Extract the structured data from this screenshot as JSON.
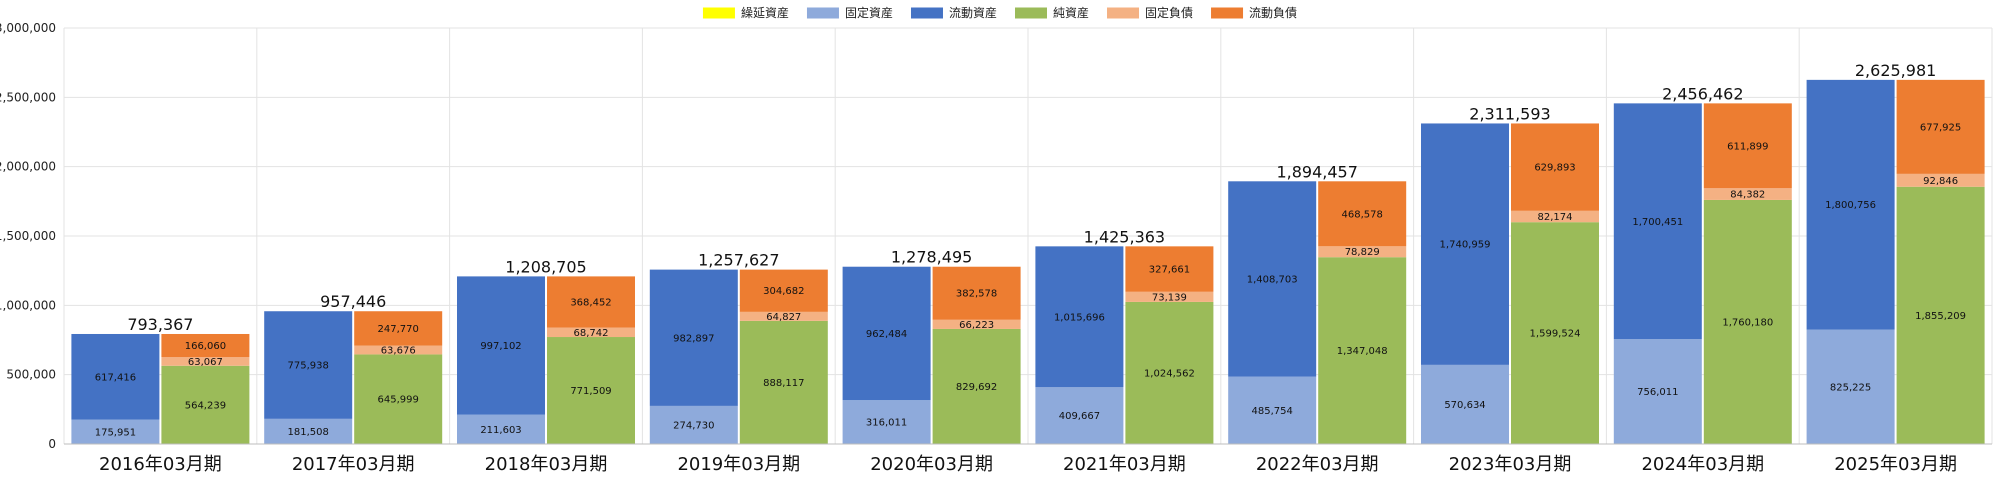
{
  "chart_data": {
    "type": "bar",
    "subtype": "paired-stacked",
    "title": "",
    "xlabel": "",
    "ylabel": "",
    "ylim": [
      0,
      3000000
    ],
    "yticks": [
      0,
      500000,
      1000000,
      1500000,
      2000000,
      2500000,
      3000000
    ],
    "ytick_labels": [
      "0",
      "500,000",
      "1,000,000",
      "1,500,000",
      "2,000,000",
      "2,500,000",
      "3,000,000"
    ],
    "grid": true,
    "legend_position": "top-center",
    "categories": [
      "2016年03月期",
      "2017年03月期",
      "2018年03月期",
      "2019年03月期",
      "2020年03月期",
      "2021年03月期",
      "2022年03月期",
      "2023年03月期",
      "2024年03月期",
      "2025年03月期"
    ],
    "totals": [
      793367,
      957446,
      1208705,
      1257627,
      1278495,
      1425363,
      1894457,
      2311593,
      2456462,
      2625981
    ],
    "total_labels": [
      "793,367",
      "957,446",
      "1,208,705",
      "1,257,627",
      "1,278,495",
      "1,425,363",
      "1,894,457",
      "2,311,593",
      "2,456,462",
      "2,625,981"
    ],
    "series": [
      {
        "name": "繰延資産",
        "color": "#ffff00",
        "stack": "assets",
        "values": [
          0,
          0,
          0,
          0,
          0,
          0,
          0,
          0,
          0,
          0
        ],
        "labels": [
          "",
          "",
          "",
          "",
          "",
          "",
          "",
          "",
          "",
          ""
        ]
      },
      {
        "name": "固定資産",
        "color": "#8eaadb",
        "stack": "assets",
        "values": [
          175951,
          181508,
          211603,
          274730,
          316011,
          409667,
          485754,
          570634,
          756011,
          825225
        ],
        "labels": [
          "175,951",
          "181,508",
          "211,603",
          "274,730",
          "316,011",
          "409,667",
          "485,754",
          "570,634",
          "756,011",
          "825,225"
        ]
      },
      {
        "name": "流動資産",
        "color": "#4472c4",
        "stack": "assets",
        "values": [
          617416,
          775938,
          997102,
          982897,
          962484,
          1015696,
          1408703,
          1740959,
          1700451,
          1800756
        ],
        "labels": [
          "617,416",
          "775,938",
          "997,102",
          "982,897",
          "962,484",
          "1,015,696",
          "1,408,703",
          "1,740,959",
          "1,700,451",
          "1,800,756"
        ]
      },
      {
        "name": "純資産",
        "color": "#9bbb59",
        "stack": "liabilities",
        "values": [
          564239,
          645999,
          771509,
          888117,
          829692,
          1024562,
          1347048,
          1599524,
          1760180,
          1855209
        ],
        "labels": [
          "564,239",
          "645,999",
          "771,509",
          "888,117",
          "829,692",
          "1,024,562",
          "1,347,048",
          "1,599,524",
          "1,760,180",
          "1,855,209"
        ]
      },
      {
        "name": "固定負債",
        "color": "#f4b183",
        "stack": "liabilities",
        "values": [
          63067,
          63676,
          68742,
          64827,
          66223,
          73139,
          78829,
          82174,
          84382,
          92846
        ],
        "labels": [
          "63,067",
          "63,676",
          "68,742",
          "64,827",
          "66,223",
          "73,139",
          "78,829",
          "82,174",
          "84,382",
          "92,846"
        ]
      },
      {
        "name": "流動負債",
        "color": "#ed7d31",
        "stack": "liabilities",
        "values": [
          166060,
          247770,
          368452,
          304682,
          382578,
          327661,
          468578,
          629893,
          611899,
          677925
        ],
        "labels": [
          "166,060",
          "247,770",
          "368,452",
          "304,682",
          "382,578",
          "327,661",
          "468,578",
          "629,893",
          "611,899",
          "677,925"
        ]
      }
    ]
  }
}
